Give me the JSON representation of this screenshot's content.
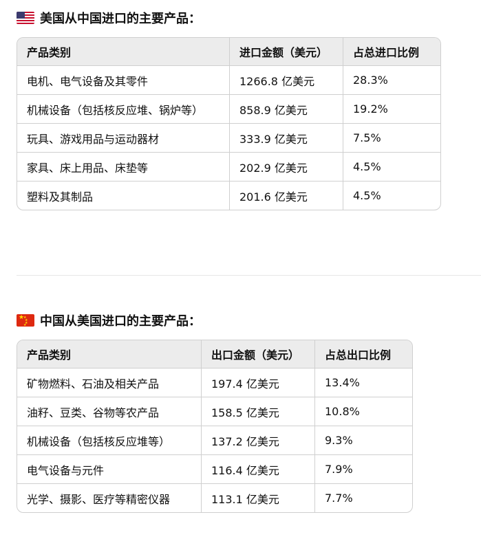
{
  "us_imports": {
    "title": "美国从中国进口的主要产品：",
    "headers": [
      "产品类别",
      "进口金额（美元）",
      "占总进口比例"
    ],
    "rows": [
      [
        "电机、电气设备及其零件",
        "1266.8 亿美元",
        "28.3%"
      ],
      [
        "机械设备（包括核反应堆、锅炉等）",
        "858.9 亿美元",
        "19.2%"
      ],
      [
        "玩具、游戏用品与运动器材",
        "333.9 亿美元",
        "7.5%"
      ],
      [
        "家具、床上用品、床垫等",
        "202.9 亿美元",
        "4.5%"
      ],
      [
        "塑料及其制品",
        "201.6 亿美元",
        "4.5%"
      ]
    ]
  },
  "cn_imports": {
    "title": "中国从美国进口的主要产品：",
    "headers": [
      "产品类别",
      "出口金额（美元）",
      "占总出口比例"
    ],
    "rows": [
      [
        "矿物燃料、石油及相关产品",
        "197.4 亿美元",
        "13.4%"
      ],
      [
        "油籽、豆类、谷物等农产品",
        "158.5 亿美元",
        "10.8%"
      ],
      [
        "机械设备（包括核反应堆等）",
        "137.2 亿美元",
        "9.3%"
      ],
      [
        "电气设备与元件",
        "116.4 亿美元",
        "7.9%"
      ],
      [
        "光学、摄影、医疗等精密仪器",
        "113.1 亿美元",
        "7.7%"
      ]
    ]
  },
  "icons": {
    "us": "us-flag-icon",
    "cn": "china-flag-icon"
  }
}
